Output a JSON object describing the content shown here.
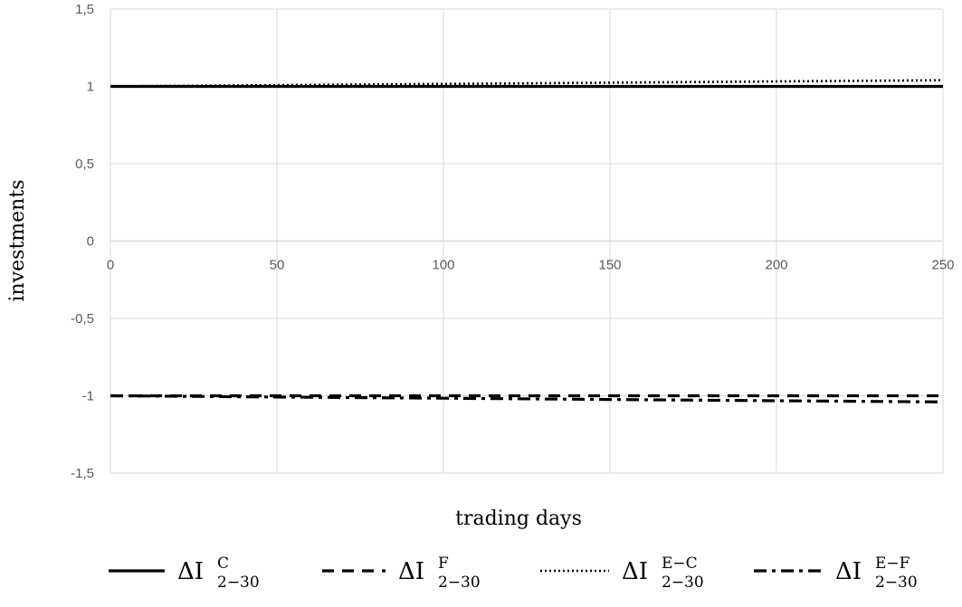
{
  "chart_data": {
    "type": "line",
    "title": "",
    "xlabel": "trading days",
    "ylabel": "investments",
    "xlim": [
      0,
      250
    ],
    "ylim": [
      -1.5,
      1.5
    ],
    "x_ticks": [
      "0",
      "50",
      "100",
      "150",
      "200",
      "250"
    ],
    "y_ticks": [
      "1,5",
      "1",
      "0,5",
      "0",
      "-0,5",
      "-1",
      "-1,5"
    ],
    "grid": true,
    "legend_position": "bottom",
    "x": [
      0,
      50,
      100,
      150,
      200,
      250
    ],
    "series": [
      {
        "name": "ΔI_{2−30}^{C}",
        "label_main": "ΔI",
        "label_sup": "C",
        "label_sub": "2−30",
        "style": "solid",
        "values": [
          1.0,
          1.0,
          1.0,
          1.0,
          1.0,
          1.0
        ]
      },
      {
        "name": "ΔI_{2−30}^{F}",
        "label_main": "ΔI",
        "label_sup": "F",
        "label_sub": "2−30",
        "style": "dashed",
        "values": [
          -1.0,
          -1.0,
          -1.0,
          -1.0,
          -1.0,
          -1.0
        ]
      },
      {
        "name": "ΔI_{2−30}^{E−C}",
        "label_main": "ΔI",
        "label_sup": "E−C",
        "label_sub": "2−30",
        "style": "dotted",
        "values": [
          1.0,
          1.008,
          1.016,
          1.024,
          1.032,
          1.04
        ]
      },
      {
        "name": "ΔI_{2−30}^{E−F}",
        "label_main": "ΔI",
        "label_sup": "E−F",
        "label_sub": "2−30",
        "style": "dashdot",
        "values": [
          -1.0,
          -1.008,
          -1.016,
          -1.024,
          -1.032,
          -1.04
        ]
      }
    ],
    "colors": {
      "series": "#000000",
      "grid": "#d9d9d9",
      "axis": "#d9d9d9",
      "tick_text": "#595959"
    }
  }
}
